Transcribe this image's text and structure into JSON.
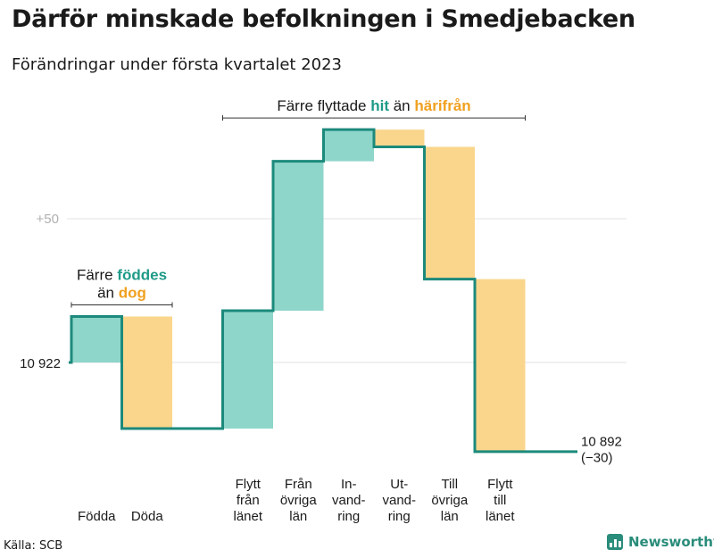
{
  "title": "Därför minskade befolkningen i Smedjebacken",
  "subtitle": "Förändringar under första kvartalet 2023",
  "source": "Källa: SCB",
  "brand": "Newsworthy",
  "colors": {
    "increase_fill": "#8ed5ca",
    "decrease_fill": "#fad68c",
    "increase_text": "#1f9a88",
    "decrease_text": "#f0a020",
    "step_line": "#1c8a7c",
    "grid": "#e2e2e2",
    "grid_label": "#b0b0b0"
  },
  "chart_data": {
    "type": "waterfall",
    "start_value": 10922,
    "start_label": "10 922",
    "end_value": 10892,
    "end_label": [
      "10 892",
      "(−30)"
    ],
    "grid_line": {
      "value": 10972,
      "label": "+50"
    },
    "ylim": [
      10880,
      11008
    ],
    "steps": [
      {
        "label": [
          "Födda"
        ],
        "change": 16,
        "kind": "increase"
      },
      {
        "label": [
          "Döda"
        ],
        "change": -39,
        "kind": "decrease"
      },
      {
        "label": [],
        "change": 0,
        "kind": "flat"
      },
      {
        "label": [
          "Flytt",
          "från",
          "länet"
        ],
        "change": 41,
        "kind": "increase"
      },
      {
        "label": [
          "Från",
          "övriga",
          "län"
        ],
        "change": 52,
        "kind": "increase"
      },
      {
        "label": [
          "In-",
          "vand-",
          "ring"
        ],
        "change": 11,
        "kind": "increase"
      },
      {
        "label": [
          "Ut-",
          "vand-",
          "ring"
        ],
        "change": -6,
        "kind": "decrease"
      },
      {
        "label": [
          "Till",
          "övriga",
          "län"
        ],
        "change": -46,
        "kind": "decrease"
      },
      {
        "label": [
          "Flytt",
          "till",
          "länet"
        ],
        "change": -60,
        "kind": "decrease"
      },
      {
        "label": [],
        "change": 0,
        "kind": "flat"
      }
    ],
    "annotations": [
      {
        "group": "births",
        "first": 0,
        "last": 1,
        "lines": [
          [
            {
              "t": "Färre ",
              "c": "plain"
            },
            {
              "t": "föddes",
              "c": "increase"
            }
          ],
          [
            {
              "t": "än ",
              "c": "plain"
            },
            {
              "t": "dog",
              "c": "decrease"
            }
          ]
        ]
      },
      {
        "group": "migration",
        "first": 3,
        "last": 8,
        "lines": [
          [
            {
              "t": "Färre flyttade ",
              "c": "plain"
            },
            {
              "t": "hit",
              "c": "increase"
            },
            {
              "t": " än ",
              "c": "plain"
            },
            {
              "t": "härifrån",
              "c": "decrease"
            }
          ]
        ]
      }
    ]
  }
}
